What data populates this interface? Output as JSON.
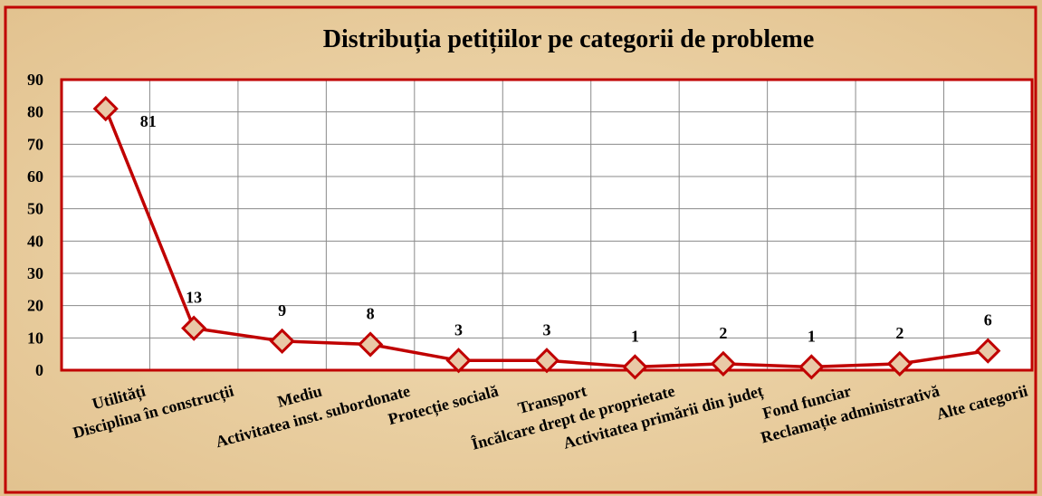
{
  "chart_data": {
    "type": "line",
    "title": "Distribuția petițiilor pe categorii de probleme",
    "categories": [
      "Utilități",
      "Disciplina în construcții",
      "Mediu",
      "Activitatea inst. subordonate",
      "Protecție socială",
      "Transport",
      "Încălcare drept de proprietate",
      "Activitatea primării din județ",
      "Fond funciar",
      "Reclamație administrativă",
      "Alte categorii"
    ],
    "values": [
      81,
      13,
      9,
      8,
      3,
      3,
      1,
      2,
      1,
      2,
      6
    ],
    "color": "#c00000",
    "marker_fill": "#e9c9a6",
    "ylim": [
      0,
      90
    ],
    "yticks": [
      0,
      10,
      20,
      30,
      40,
      50,
      60,
      70,
      80,
      90
    ],
    "grid": true
  }
}
